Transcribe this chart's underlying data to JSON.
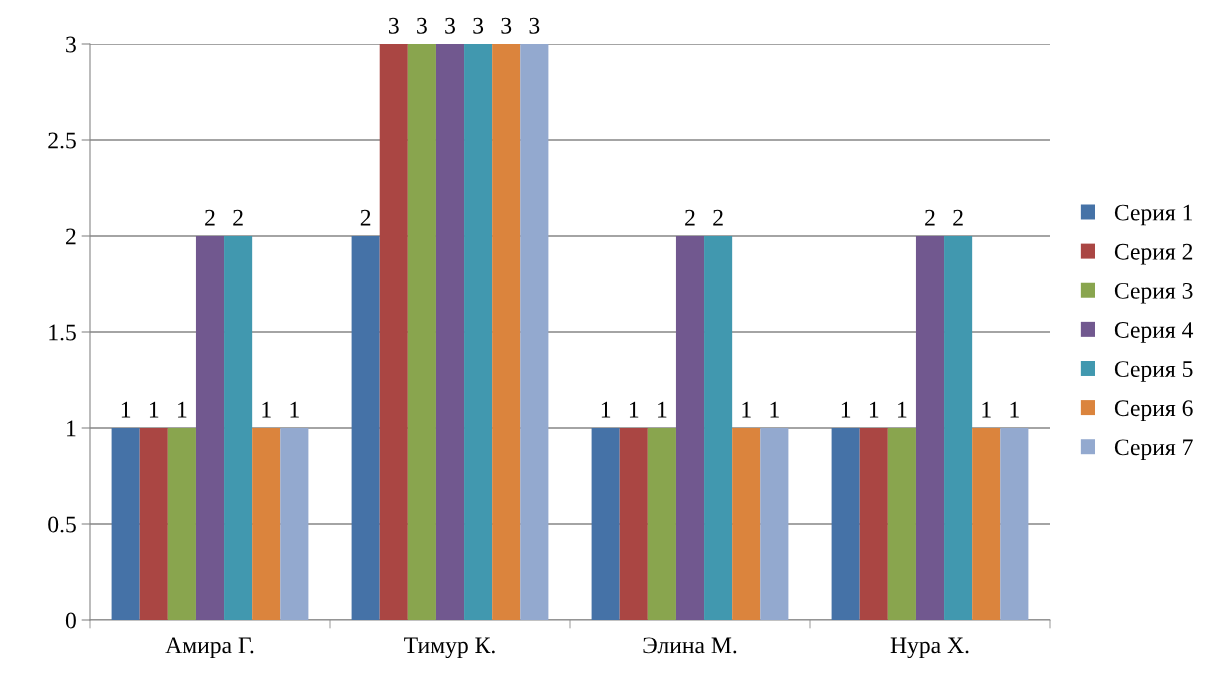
{
  "chart_data": {
    "type": "bar",
    "categories": [
      "Амира Г.",
      "Тимур К.",
      "Элина М.",
      "Нура Х."
    ],
    "series": [
      {
        "name": "Серия 1",
        "color": "#4572a7",
        "values": [
          1,
          2,
          1,
          1
        ]
      },
      {
        "name": "Серия 2",
        "color": "#aa4643",
        "values": [
          1,
          3,
          1,
          1
        ]
      },
      {
        "name": "Серия 3",
        "color": "#89a54e",
        "values": [
          1,
          3,
          1,
          1
        ]
      },
      {
        "name": "Серия 4",
        "color": "#71588f",
        "values": [
          2,
          3,
          2,
          2
        ]
      },
      {
        "name": "Серия 5",
        "color": "#4198af",
        "values": [
          2,
          3,
          2,
          2
        ]
      },
      {
        "name": "Серия 6",
        "color": "#db843d",
        "values": [
          1,
          3,
          1,
          1
        ]
      },
      {
        "name": "Серия 7",
        "color": "#93a9cf",
        "values": [
          1,
          3,
          1,
          1
        ]
      }
    ],
    "ylim": [
      0,
      3
    ],
    "yticks": [
      0,
      0.5,
      1,
      1.5,
      2,
      2.5,
      3
    ],
    "grid": "y",
    "legend": "right",
    "data_labels": true
  }
}
